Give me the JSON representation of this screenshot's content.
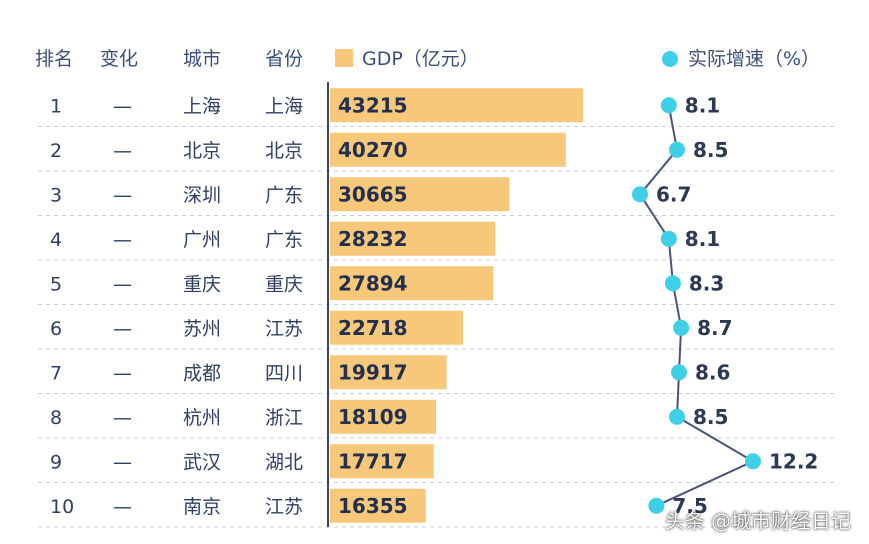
{
  "headers": {
    "rank": "排名",
    "change": "变化",
    "city": "城市",
    "province": "省份",
    "gdp": "GDP（亿元）",
    "growth": "实际增速（%）"
  },
  "chart_data": {
    "type": "table",
    "rows": [
      {
        "rank": "1",
        "change": "—",
        "city": "上海",
        "province": "上海",
        "gdp": 43215,
        "growth": 8.1
      },
      {
        "rank": "2",
        "change": "—",
        "city": "北京",
        "province": "北京",
        "gdp": 40270,
        "growth": 8.5
      },
      {
        "rank": "3",
        "change": "—",
        "city": "深圳",
        "province": "广东",
        "gdp": 30665,
        "growth": 6.7
      },
      {
        "rank": "4",
        "change": "—",
        "city": "广州",
        "province": "广东",
        "gdp": 28232,
        "growth": 8.1
      },
      {
        "rank": "5",
        "change": "—",
        "city": "重庆",
        "province": "重庆",
        "gdp": 27894,
        "growth": 8.3
      },
      {
        "rank": "6",
        "change": "—",
        "city": "苏州",
        "province": "江苏",
        "gdp": 22718,
        "growth": 8.7
      },
      {
        "rank": "7",
        "change": "—",
        "city": "成都",
        "province": "四川",
        "gdp": 19917,
        "growth": 8.6
      },
      {
        "rank": "8",
        "change": "—",
        "city": "杭州",
        "province": "浙江",
        "gdp": 18109,
        "growth": 8.5
      },
      {
        "rank": "9",
        "change": "—",
        "city": "武汉",
        "province": "湖北",
        "gdp": 17717,
        "growth": 12.2
      },
      {
        "rank": "10",
        "change": "—",
        "city": "南京",
        "province": "江苏",
        "gdp": 16355,
        "growth": 7.5
      }
    ],
    "gdp_range": [
      0,
      43215
    ],
    "growth_range": [
      6.7,
      12.2
    ],
    "colors": {
      "bar": "#f7c77a",
      "dot": "#3fd0e8",
      "line": "#4a5578"
    }
  },
  "watermark": "头条 @城市财经日记"
}
